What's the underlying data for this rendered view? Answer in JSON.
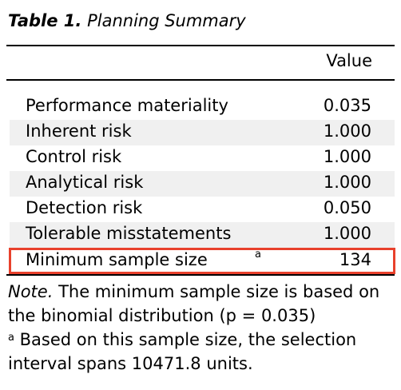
{
  "caption": {
    "number": "Table 1.",
    "title": "Planning Summary"
  },
  "header": {
    "value_col": "Value"
  },
  "rows": [
    {
      "label": "Performance materiality",
      "value": "0.035",
      "footnote": ""
    },
    {
      "label": "Inherent risk",
      "value": "1.000",
      "footnote": ""
    },
    {
      "label": "Control risk",
      "value": "1.000",
      "footnote": ""
    },
    {
      "label": "Analytical risk",
      "value": "1.000",
      "footnote": ""
    },
    {
      "label": "Detection risk",
      "value": "0.050",
      "footnote": ""
    },
    {
      "label": "Tolerable misstatements",
      "value": "1.000",
      "footnote": ""
    },
    {
      "label": "Minimum sample size",
      "value": "134",
      "footnote": "a"
    }
  ],
  "notes": {
    "note_label": "Note.",
    "note_text": " The minimum sample size is based on the binomial distribution (p = 0.035)",
    "footnote_mark": "a",
    "footnote_text": " Based on this sample size, the selection interval spans 10471.8 units."
  },
  "colors": {
    "highlight_border": "#e8412c",
    "row_shade": "#f0f0f0"
  }
}
